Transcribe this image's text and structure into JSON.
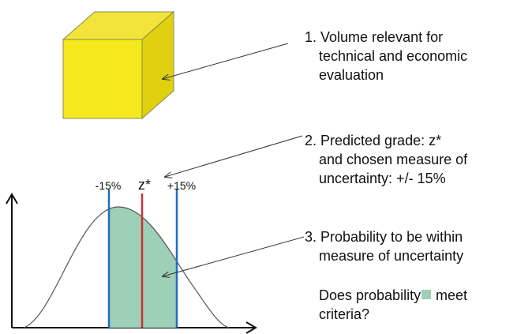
{
  "annotations": [
    {
      "lines": [
        "1. Volume relevant for",
        "technical and economic",
        "evaluation"
      ]
    },
    {
      "lines": [
        "2. Predicted grade: z*",
        "and chosen measure of",
        "uncertainty:  +/- 15%"
      ]
    },
    {
      "lines": [
        "3. Probability to be within",
        "measure of uncertainty"
      ]
    }
  ],
  "curve_labels": [
    "-15%",
    "z*",
    "+15%"
  ],
  "question": {
    "before": "Does probability",
    "after": "meet",
    "line2": "criteria?"
  }
}
